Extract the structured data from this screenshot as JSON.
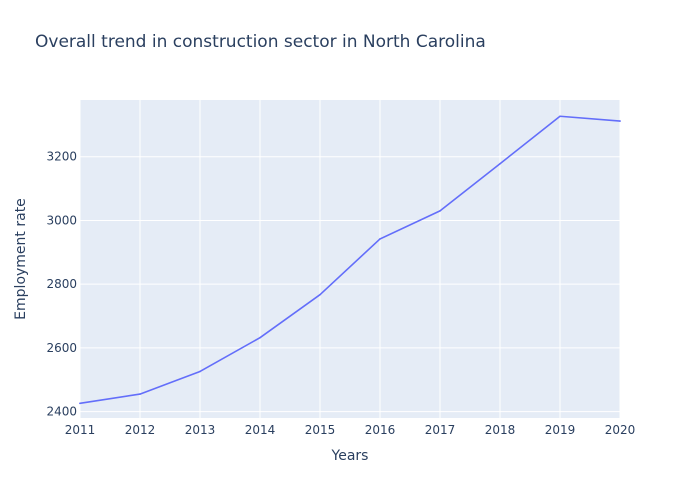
{
  "chart_data": {
    "type": "line",
    "title": "Overall trend in construction sector in North Carolina",
    "xlabel": "Years",
    "ylabel": "Employment rate",
    "x": [
      2011,
      2012,
      2013,
      2014,
      2015,
      2016,
      2017,
      2018,
      2019,
      2020
    ],
    "series": [
      {
        "values": [
          2426,
          2455,
          2526,
          2632,
          2767,
          2942,
          3030,
          3178,
          3327,
          3312
        ]
      }
    ],
    "xlim": [
      2011,
      2020
    ],
    "ylim": [
      2380,
      3378
    ],
    "x_ticks": [
      "2011",
      "2012",
      "2013",
      "2014",
      "2015",
      "2016",
      "2017",
      "2018",
      "2019",
      "2020"
    ],
    "y_ticks": [
      {
        "value": 2400,
        "label": "2400"
      },
      {
        "value": 2600,
        "label": "2600"
      },
      {
        "value": 2800,
        "label": "2800"
      },
      {
        "value": 3000,
        "label": "3000"
      },
      {
        "value": 3200,
        "label": "3200"
      }
    ],
    "grid": true,
    "colors": {
      "line": "#636efa",
      "plot_background": "#e5ecf6",
      "grid": "#ffffff",
      "text": "#2a3f5f"
    }
  }
}
